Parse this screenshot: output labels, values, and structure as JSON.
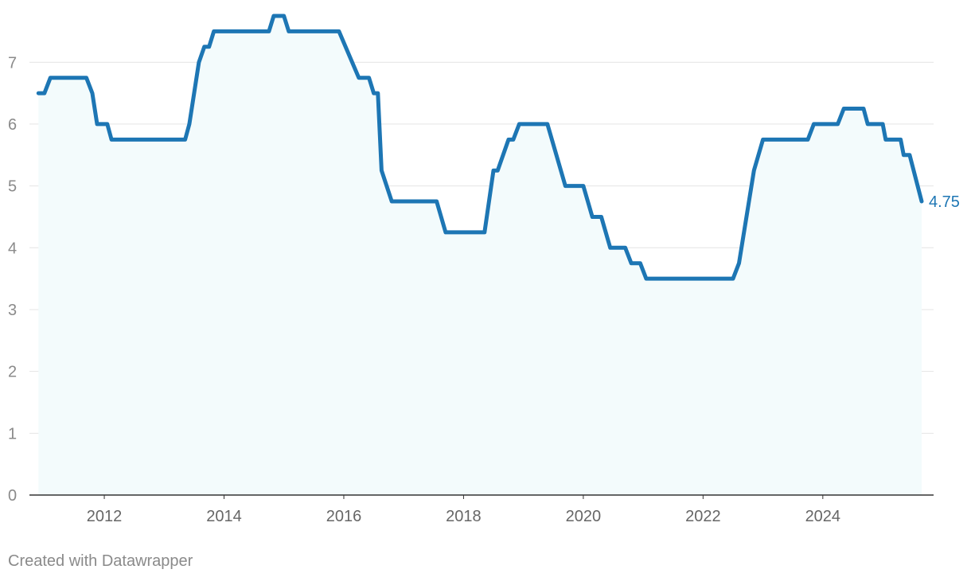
{
  "chart_data": {
    "type": "area",
    "title": "",
    "xlabel": "",
    "ylabel": "",
    "ylim": [
      0,
      7.75
    ],
    "yticks": [
      0,
      1,
      2,
      3,
      4,
      5,
      6,
      7
    ],
    "xlim": [
      2010.75,
      2025.85
    ],
    "xticks": [
      "2012",
      "2014",
      "2016",
      "2018",
      "2020",
      "2022",
      "2024"
    ],
    "grid": true,
    "legend": "none",
    "line_color": "#1d76b4",
    "fill_color": "#f3fbfc",
    "end_label": "4.75",
    "series": [
      {
        "x": [
          2010.9,
          2011.0,
          2011.1,
          2011.7,
          2011.8,
          2011.88,
          2012.05,
          2012.12,
          2013.35,
          2013.42,
          2013.58,
          2013.67,
          2013.75,
          2013.83,
          2014.75,
          2014.83,
          2015.0,
          2015.08,
          2015.92,
          2016.25,
          2016.42,
          2016.5,
          2016.57,
          2016.63,
          2016.8,
          2017.55,
          2017.7,
          2018.35,
          2018.5,
          2018.57,
          2018.75,
          2018.83,
          2018.93,
          2019.4,
          2019.7,
          2020.0,
          2020.15,
          2020.3,
          2020.45,
          2020.7,
          2020.8,
          2020.95,
          2021.05,
          2022.5,
          2022.6,
          2022.85,
          2023.0,
          2023.75,
          2023.85,
          2024.25,
          2024.35,
          2024.68,
          2024.75,
          2025.0,
          2025.05,
          2025.3,
          2025.35,
          2025.45,
          2025.65
        ],
        "values": [
          6.5,
          6.5,
          6.75,
          6.75,
          6.5,
          6.0,
          6.0,
          5.75,
          5.75,
          6.0,
          7.0,
          7.25,
          7.25,
          7.5,
          7.5,
          7.75,
          7.75,
          7.5,
          7.5,
          6.75,
          6.75,
          6.5,
          6.5,
          5.25,
          4.75,
          4.75,
          4.25,
          4.25,
          5.25,
          5.25,
          5.75,
          5.75,
          6.0,
          6.0,
          5.0,
          5.0,
          4.5,
          4.5,
          4.0,
          4.0,
          3.75,
          3.75,
          3.5,
          3.5,
          3.75,
          5.25,
          5.75,
          5.75,
          6.0,
          6.0,
          6.25,
          6.25,
          6.0,
          6.0,
          5.75,
          5.75,
          5.5,
          5.5,
          4.75
        ]
      }
    ]
  },
  "footer": {
    "credit": "Created with Datawrapper"
  }
}
